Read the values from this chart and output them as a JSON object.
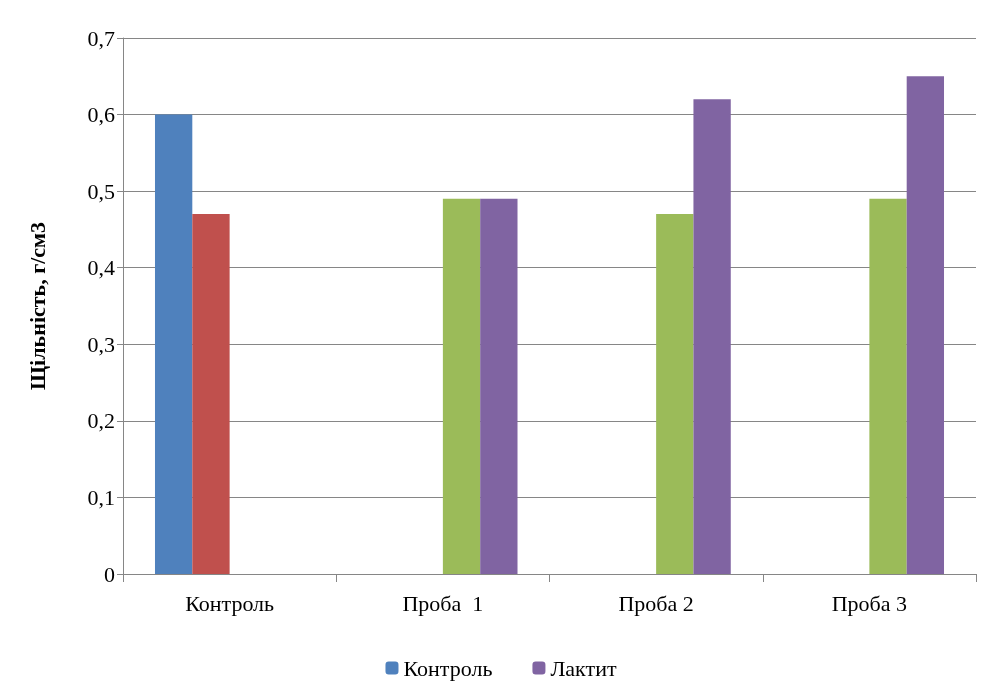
{
  "chart_data": {
    "type": "bar",
    "ylabel": "Щільність, г/см3",
    "categories": [
      "Контроль",
      "Проба  1",
      "Проба 2",
      "Проба 3"
    ],
    "series": [
      {
        "name": "Контроль",
        "color": "#4f81bd",
        "values": [
          0.6,
          null,
          null,
          null
        ]
      },
      {
        "color": "#c0504d",
        "values": [
          0.47,
          null,
          null,
          null
        ]
      },
      {
        "color": "#9bbb59",
        "values": [
          null,
          0.49,
          0.47,
          0.49
        ]
      },
      {
        "name": "Лактит",
        "color": "#8064a2",
        "values": [
          null,
          0.49,
          0.62,
          0.65
        ]
      }
    ],
    "ylim": [
      0,
      0.7
    ],
    "yticks": [
      {
        "value": 0,
        "label": "0"
      },
      {
        "value": 0.1,
        "label": "0,1"
      },
      {
        "value": 0.2,
        "label": "0,2"
      },
      {
        "value": 0.3,
        "label": "0,3"
      },
      {
        "value": 0.4,
        "label": "0,4"
      },
      {
        "value": 0.5,
        "label": "0,5"
      },
      {
        "value": 0.6,
        "label": "0,6"
      },
      {
        "value": 0.7,
        "label": "0,7"
      }
    ],
    "grid": "y",
    "legend": "bottom"
  }
}
